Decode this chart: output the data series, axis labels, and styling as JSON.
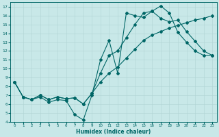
{
  "xlabel": "Humidex (Indice chaleur)",
  "bg_color": "#c8e8e8",
  "line_color": "#006666",
  "grid_color": "#b0d4d4",
  "xlim": [
    -0.5,
    23.5
  ],
  "ylim": [
    4,
    17.5
  ],
  "xticks": [
    0,
    1,
    2,
    3,
    4,
    5,
    6,
    7,
    8,
    9,
    10,
    11,
    12,
    13,
    14,
    15,
    16,
    17,
    18,
    19,
    20,
    21,
    22,
    23
  ],
  "yticks": [
    4,
    5,
    6,
    7,
    8,
    9,
    10,
    11,
    12,
    13,
    14,
    15,
    16,
    17
  ],
  "line1_x": [
    0,
    1,
    2,
    3,
    4,
    5,
    6,
    7,
    8,
    9,
    10,
    11,
    12,
    13,
    14,
    15,
    16,
    17,
    18,
    19,
    20,
    21,
    22,
    23
  ],
  "line1_y": [
    8.5,
    6.8,
    6.5,
    6.8,
    6.2,
    6.5,
    6.4,
    4.8,
    4.2,
    7.0,
    11.0,
    13.2,
    9.5,
    16.3,
    16.0,
    15.8,
    16.5,
    17.1,
    16.3,
    14.1,
    13.0,
    12.0,
    11.5,
    11.5
  ],
  "line2_x": [
    0,
    1,
    2,
    3,
    4,
    5,
    6,
    7,
    8,
    9,
    10,
    11,
    12,
    13,
    14,
    15,
    16,
    17,
    18,
    19,
    20,
    21,
    22,
    23
  ],
  "line2_y": [
    8.5,
    6.8,
    6.5,
    7.0,
    6.5,
    6.8,
    6.6,
    6.7,
    6.0,
    7.2,
    9.5,
    11.5,
    12.0,
    13.5,
    15.0,
    16.3,
    16.5,
    15.7,
    15.3,
    15.5,
    14.2,
    13.1,
    12.0,
    11.5
  ],
  "line3_x": [
    0,
    1,
    2,
    3,
    4,
    5,
    6,
    7,
    8,
    9,
    10,
    11,
    12,
    13,
    14,
    15,
    16,
    17,
    18,
    19,
    20,
    21,
    22,
    23
  ],
  "line3_y": [
    8.5,
    6.8,
    6.5,
    7.0,
    6.5,
    6.8,
    6.6,
    6.7,
    6.0,
    7.2,
    8.5,
    9.5,
    10.2,
    11.2,
    12.2,
    13.2,
    13.8,
    14.2,
    14.6,
    14.9,
    15.2,
    15.5,
    15.7,
    16.0
  ]
}
